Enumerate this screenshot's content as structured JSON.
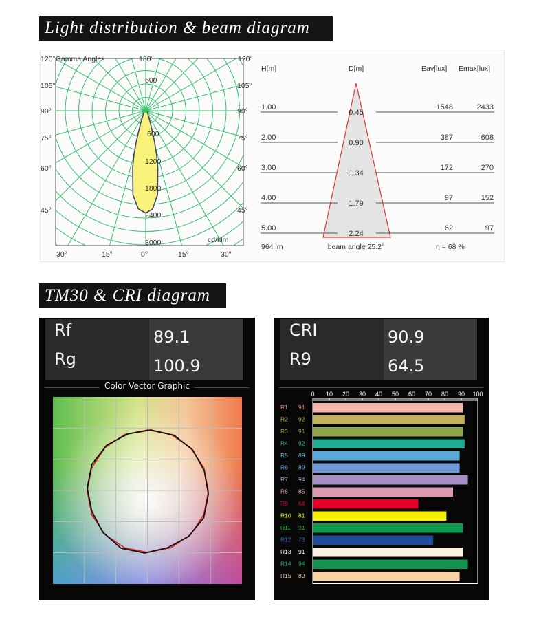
{
  "sections": {
    "light_title": "Light distribution & beam diagram",
    "tm30_title": "TM30 & CRI diagram"
  },
  "polar": {
    "corner_label": "120°Gamma Angles",
    "top_label": "180°",
    "right_top_label": "120°",
    "left_angle_labels": [
      "105°",
      "90°",
      "75°",
      "60°",
      "45°"
    ],
    "right_angle_labels": [
      "105°",
      "90°",
      "75°",
      "60°",
      "45°"
    ],
    "bottom_labels": [
      "30°",
      "15°",
      "0°",
      "15°",
      "30°"
    ],
    "radial_labels": [
      "600",
      "600",
      "1200",
      "1800",
      "2400",
      "3000"
    ],
    "unit": "cd/klm"
  },
  "beam": {
    "headers": {
      "h": "H[m]",
      "d": "D[m]",
      "eav": "Eav[lux]",
      "emax": "Emax[lux]"
    },
    "rows": [
      {
        "h": "1.00",
        "d": "0.45",
        "eav": "1548",
        "emax": "2433"
      },
      {
        "h": "2.00",
        "d": "0.90",
        "eav": "387",
        "emax": "608"
      },
      {
        "h": "3.00",
        "d": "1.34",
        "eav": "172",
        "emax": "270"
      },
      {
        "h": "4.00",
        "d": "1.79",
        "eav": "97",
        "emax": "152"
      },
      {
        "h": "5.00",
        "d": "2.24",
        "eav": "62",
        "emax": "97"
      }
    ],
    "lumen": "964 lm",
    "beam_angle": "beam angle 25.2°",
    "efficiency": "η  = 68 %"
  },
  "tm30": {
    "rf_label": "Rf",
    "rf_value": "89.1",
    "rg_label": "Rg",
    "rg_value": "100.9",
    "graphic_title": "Color Vector Graphic"
  },
  "cri_header": {
    "cri_label": "CRI",
    "cri_value": "90.9",
    "r9_label": "R9",
    "r9_value": "64.5"
  },
  "chart_data": [
    {
      "type": "line",
      "title": "",
      "radial_ticks": [
        600,
        1200,
        1800,
        2400,
        3000
      ],
      "unit": "cd/klm",
      "series": [
        {
          "angle_deg": [
            0,
            4,
            8,
            12,
            14,
            16,
            20,
            30,
            60,
            90,
            180
          ],
          "intensity": [
            2290,
            2200,
            1900,
            1300,
            1000,
            700,
            330,
            110,
            30,
            10,
            0
          ]
        }
      ]
    },
    {
      "type": "table",
      "columns": [
        "H[m]",
        "D[m]",
        "Eav[lux]",
        "Emax[lux]"
      ],
      "rows": [
        [
          "1.00",
          "0.45",
          "1548",
          "2433"
        ],
        [
          "2.00",
          "0.90",
          "387",
          "608"
        ],
        [
          "3.00",
          "1.34",
          "172",
          "270"
        ],
        [
          "4.00",
          "1.79",
          "97",
          "152"
        ],
        [
          "5.00",
          "2.24",
          "62",
          "97"
        ]
      ]
    },
    {
      "type": "line",
      "title": "Color Vector Graphic",
      "grid": true,
      "series": [
        {
          "color": "#111111",
          "radius_ratio": [
            1.0,
            1.02,
            1.0,
            0.98,
            1.01,
            1.03,
            1.0,
            0.98,
            1.0,
            1.02,
            1.01,
            0.99,
            1.0,
            1.01,
            1.0,
            0.99
          ]
        },
        {
          "color": "#dd2222",
          "radius_ratio": [
            1.0,
            1.0,
            1.0,
            1.0,
            1.0,
            1.0,
            1.0,
            1.0,
            1.0,
            1.0,
            1.0,
            1.0,
            1.0,
            1.0,
            1.0,
            1.0
          ]
        }
      ]
    },
    {
      "type": "bar",
      "title": "",
      "categories": [
        "R1",
        "R2",
        "R3",
        "R4",
        "R5",
        "R6",
        "R7",
        "R8",
        "R9",
        "R10",
        "R11",
        "R12",
        "R13",
        "R14",
        "R15"
      ],
      "values": [
        91,
        92,
        91,
        92,
        89,
        89,
        94,
        85,
        64,
        81,
        91,
        73,
        91,
        94,
        89
      ],
      "colors": [
        "#f4b6a8",
        "#c1b15a",
        "#8fa64a",
        "#1fae96",
        "#5ba9d6",
        "#6f99d8",
        "#a58fc4",
        "#dc9ab2",
        "#e2002a",
        "#f4ee00",
        "#0e9a4c",
        "#1d4b9b",
        "#fbf0e2",
        "#11924f",
        "#f7d2a2"
      ],
      "label_colors": [
        "#f08a78",
        "#c7b24a",
        "#8cb04a",
        "#1fc1a6",
        "#5ab2e2",
        "#74a3e6",
        "#b59ad6",
        "#e6a4bc",
        "#e2002a",
        "#f4ee00",
        "#11b85a",
        "#2a63c8",
        "#ffffff",
        "#14b55f",
        "#f7d2a2"
      ],
      "ylim": [
        0,
        100
      ],
      "ticks": [
        0,
        10,
        20,
        30,
        40,
        50,
        60,
        70,
        80,
        90,
        100
      ],
      "orientation": "horizontal"
    }
  ]
}
